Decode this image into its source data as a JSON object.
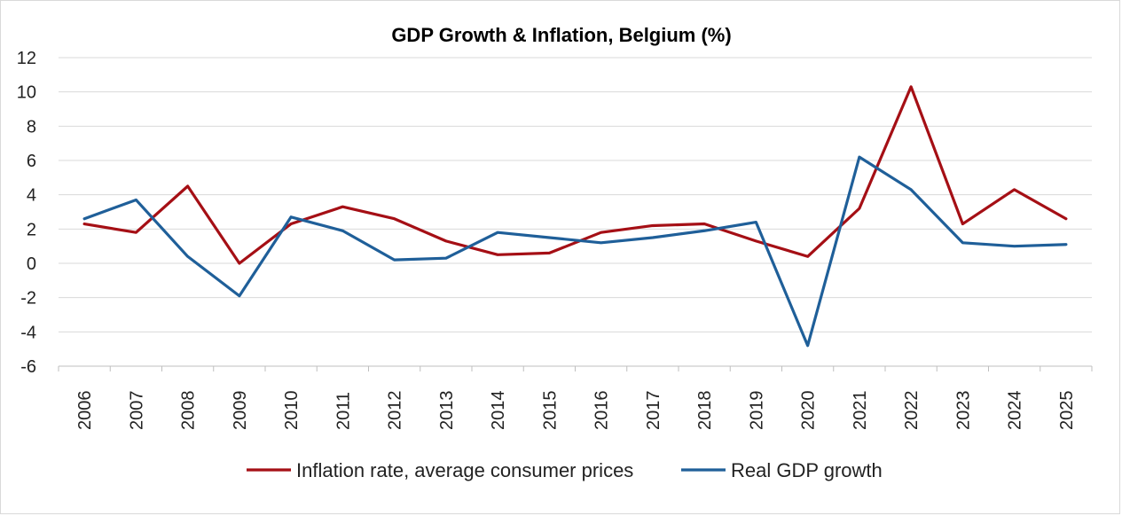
{
  "chart_data": {
    "type": "line",
    "title": "GDP Growth & Inflation, Belgium (%)",
    "xlabel": "",
    "ylabel": "",
    "categories": [
      "2006",
      "2007",
      "2008",
      "2009",
      "2010",
      "2011",
      "2012",
      "2013",
      "2014",
      "2015",
      "2016",
      "2017",
      "2018",
      "2019",
      "2020",
      "2021",
      "2022",
      "2023",
      "2024",
      "2025"
    ],
    "series": [
      {
        "name": "Inflation rate, average consumer prices",
        "color": "#a50f15",
        "values": [
          2.3,
          1.8,
          4.5,
          0.0,
          2.3,
          3.3,
          2.6,
          1.3,
          0.5,
          0.6,
          1.8,
          2.2,
          2.3,
          1.3,
          0.4,
          3.2,
          10.3,
          2.3,
          4.3,
          2.6
        ]
      },
      {
        "name": "Real GDP growth",
        "color": "#1f5f99",
        "values": [
          2.6,
          3.7,
          0.4,
          -1.9,
          2.7,
          1.9,
          0.2,
          0.3,
          1.8,
          1.5,
          1.2,
          1.5,
          1.9,
          2.4,
          -4.8,
          6.2,
          4.3,
          1.2,
          1.0,
          1.1
        ]
      }
    ],
    "ylim": [
      -6,
      12
    ],
    "yticks": [
      "12",
      "10",
      "8",
      "6",
      "4",
      "2",
      "0",
      "-2",
      "-4",
      "-6"
    ],
    "ytick_values": [
      12,
      10,
      8,
      6,
      4,
      2,
      0,
      -2,
      -4,
      -6
    ],
    "grid": true,
    "legend_position": "bottom"
  }
}
